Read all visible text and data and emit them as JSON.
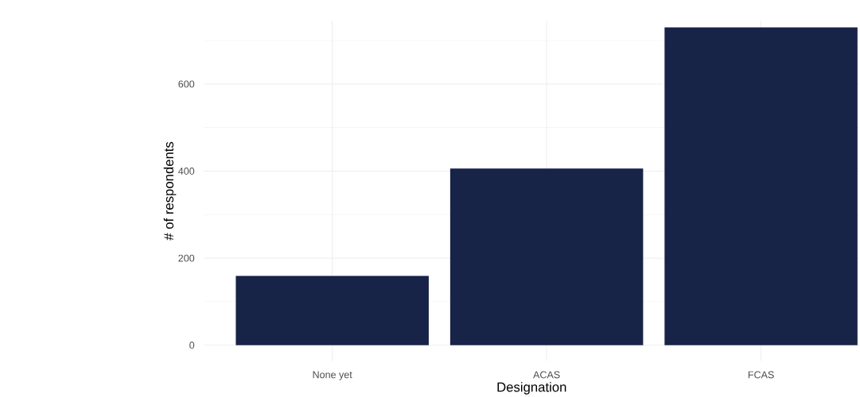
{
  "chart_data": {
    "type": "bar",
    "xlabel": "Designation",
    "ylabel": "# of respondents",
    "categories": [
      "None yet",
      "ACAS",
      "FCAS"
    ],
    "values": [
      159,
      406,
      730
    ],
    "color": "#172347",
    "ylim": [
      -36,
      745
    ],
    "yticks": [
      0,
      200,
      400,
      600
    ],
    "grid": true
  }
}
